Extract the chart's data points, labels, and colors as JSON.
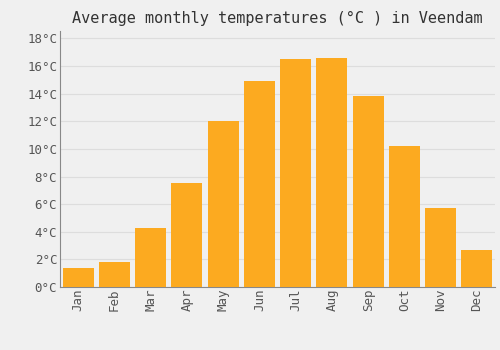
{
  "title": "Average monthly temperatures (°C ) in Veendam",
  "months": [
    "Jan",
    "Feb",
    "Mar",
    "Apr",
    "May",
    "Jun",
    "Jul",
    "Aug",
    "Sep",
    "Oct",
    "Nov",
    "Dec"
  ],
  "values": [
    1.4,
    1.8,
    4.3,
    7.5,
    12.0,
    14.9,
    16.5,
    16.6,
    13.8,
    10.2,
    5.7,
    2.7
  ],
  "bar_color": "#FCAA20",
  "bar_edge_color": "#FCAA20",
  "background_color": "#F0F0F0",
  "grid_color": "#DDDDDD",
  "ylim": [
    0,
    18.5
  ],
  "yticks": [
    0,
    2,
    4,
    6,
    8,
    10,
    12,
    14,
    16,
    18
  ],
  "title_fontsize": 11,
  "tick_fontsize": 9,
  "font_family": "monospace"
}
